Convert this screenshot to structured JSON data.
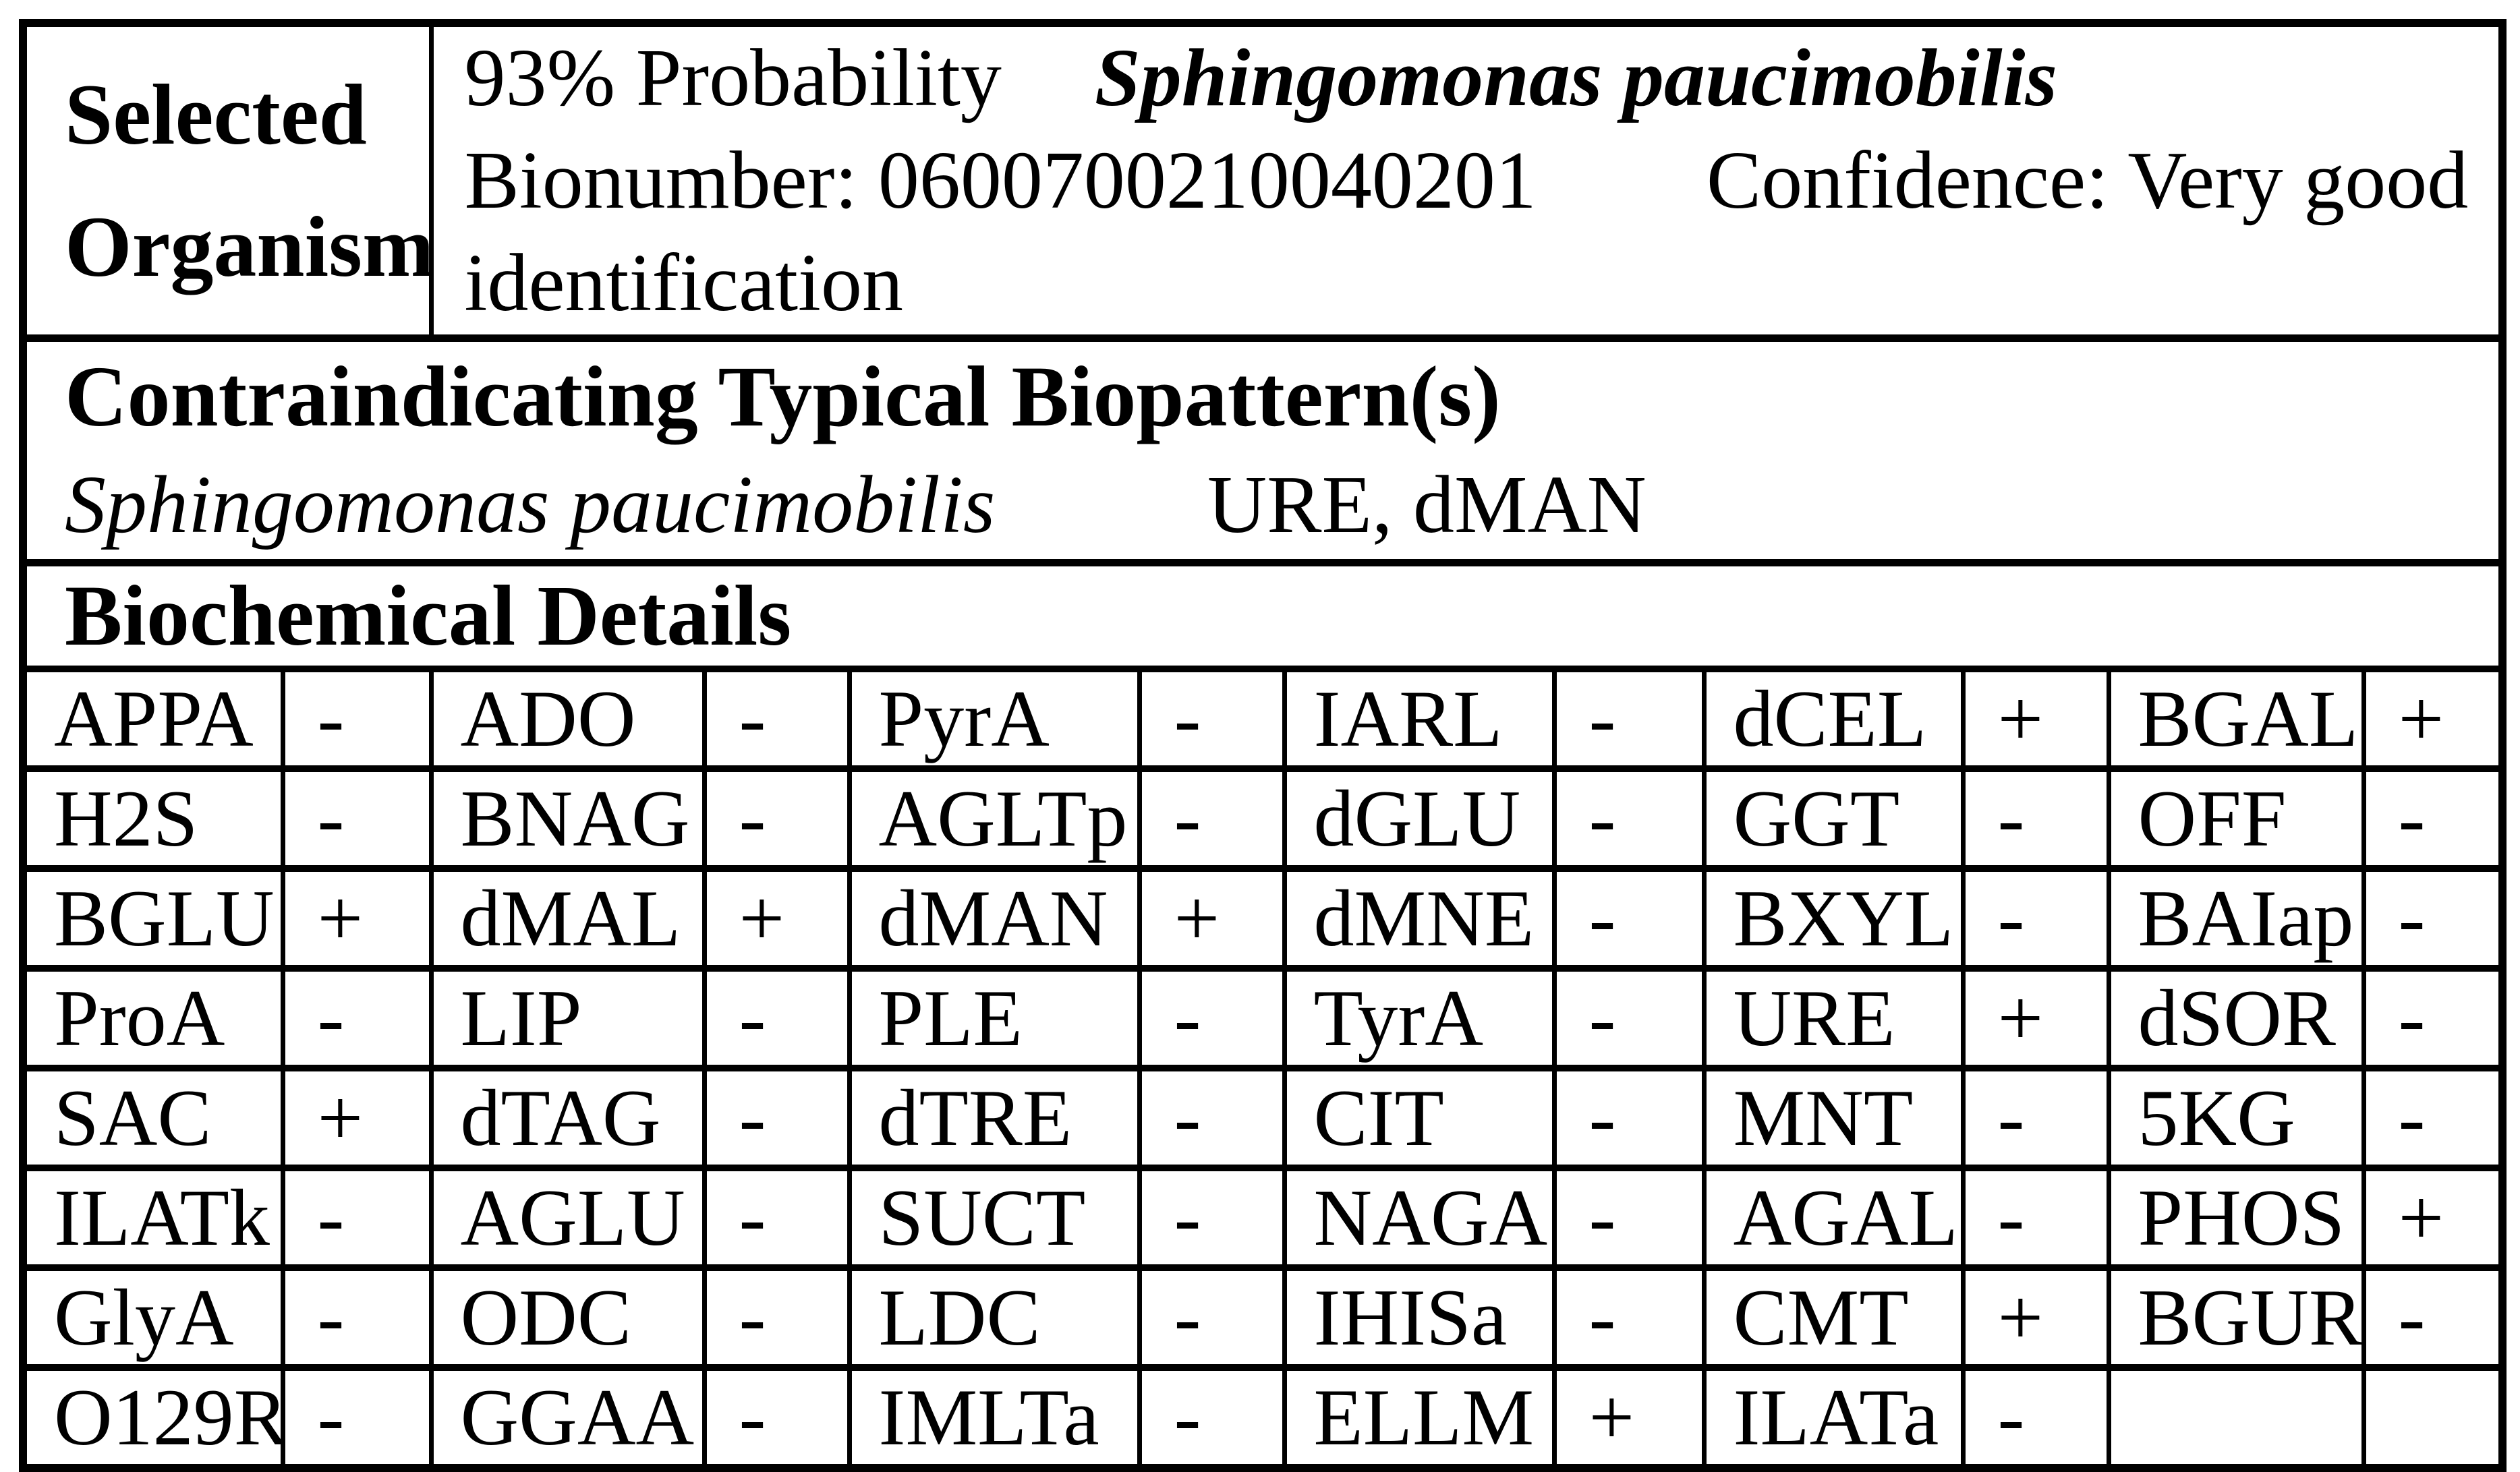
{
  "header": {
    "label_line1": "Selected",
    "label_line2": "Organism",
    "probability": "93% Probability",
    "organism": "Sphingomonas paucimobilis",
    "bionumber": "Bionumber: 0600700210040201",
    "confidence": "Confidence: Very good",
    "confidence_wrap": "identification"
  },
  "contraindicating": {
    "title": "Contraindicating Typical Biopattern(s)",
    "organism": "Sphingomonas paucimobilis",
    "biopattern": "URE, dMAN"
  },
  "biochemical_details": {
    "title": "Biochemical Details",
    "rows": [
      [
        [
          "APPA",
          "-"
        ],
        [
          "ADO",
          "-"
        ],
        [
          "PyrA",
          "-"
        ],
        [
          "IARL",
          "-"
        ],
        [
          "dCEL",
          "+"
        ],
        [
          "BGAL",
          "+"
        ]
      ],
      [
        [
          "H2S",
          "-"
        ],
        [
          "BNAG",
          "-"
        ],
        [
          "AGLTp",
          "-"
        ],
        [
          "dGLU",
          "-"
        ],
        [
          "GGT",
          "-"
        ],
        [
          "OFF",
          "-"
        ]
      ],
      [
        [
          "BGLU",
          "+"
        ],
        [
          "dMAL",
          "+"
        ],
        [
          "dMAN",
          "+"
        ],
        [
          "dMNE",
          "-"
        ],
        [
          "BXYL",
          "-"
        ],
        [
          "BAIap",
          "-"
        ]
      ],
      [
        [
          "ProA",
          "-"
        ],
        [
          "LIP",
          "-"
        ],
        [
          "PLE",
          "-"
        ],
        [
          "TyrA",
          "-"
        ],
        [
          "URE",
          "+"
        ],
        [
          "dSOR",
          "-"
        ]
      ],
      [
        [
          "SAC",
          "+"
        ],
        [
          "dTAG",
          "-"
        ],
        [
          "dTRE",
          "-"
        ],
        [
          "CIT",
          "-"
        ],
        [
          "MNT",
          "-"
        ],
        [
          "5KG",
          "-"
        ]
      ],
      [
        [
          "ILATk",
          "-"
        ],
        [
          "AGLU",
          "-"
        ],
        [
          "SUCT",
          "-"
        ],
        [
          "NAGA",
          "-"
        ],
        [
          "AGAL",
          "-"
        ],
        [
          "PHOS",
          "+"
        ]
      ],
      [
        [
          "GlyA",
          "-"
        ],
        [
          "ODC",
          "-"
        ],
        [
          "LDC",
          "-"
        ],
        [
          "IHISa",
          "-"
        ],
        [
          "CMT",
          "+"
        ],
        [
          "BGUR",
          "-"
        ]
      ],
      [
        [
          "O129R",
          "-"
        ],
        [
          "GGAA",
          "-"
        ],
        [
          "IMLTa",
          "-"
        ],
        [
          "ELLM",
          "+"
        ],
        [
          "ILATa",
          "-"
        ],
        [
          "",
          ""
        ]
      ]
    ]
  },
  "colors": {
    "text": "#000000",
    "background": "#ffffff",
    "border": "#000000"
  }
}
